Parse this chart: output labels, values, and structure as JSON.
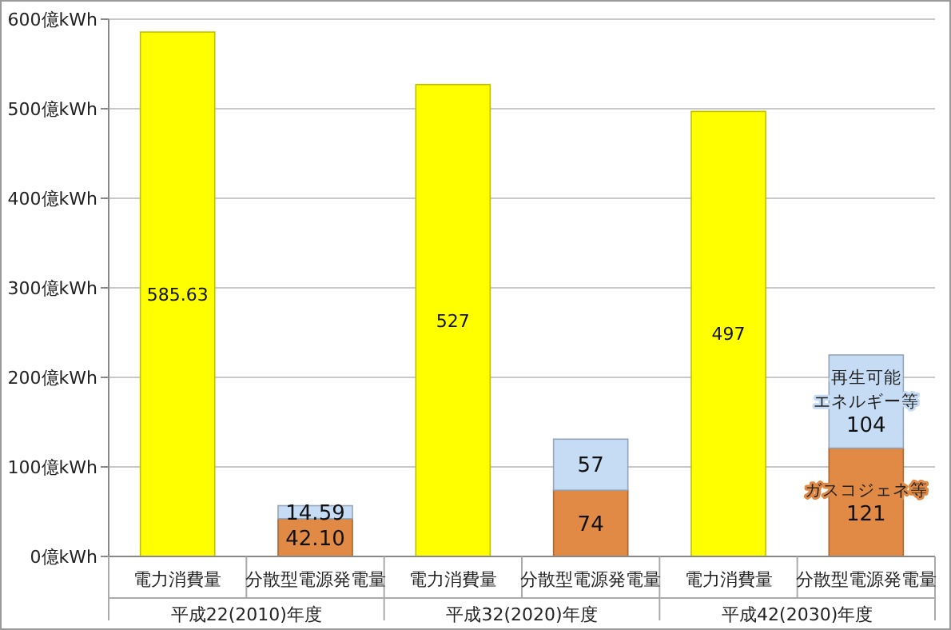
{
  "chart_data": {
    "type": "bar",
    "stacked": true,
    "grid": "y",
    "categories": [
      "電力消費量",
      "分散型電源発電量",
      "電力消費量",
      "分散型電源発電量",
      "電力消費量",
      "分散型電源発電量"
    ],
    "annotations": [
      "平成22(2010)年度",
      "平成32(2020)年度",
      "平成42(2030)年度"
    ],
    "ylim": [
      0,
      600
    ],
    "yticks": [
      {
        "value": 0,
        "label": "0億kWh"
      },
      {
        "value": 100,
        "label": "100億kWh"
      },
      {
        "value": 200,
        "label": "200億kWh"
      },
      {
        "value": 300,
        "label": "300億kWh"
      },
      {
        "value": 400,
        "label": "400億kWh"
      },
      {
        "value": 500,
        "label": "500億kWh"
      },
      {
        "value": 600,
        "label": "600億kWh"
      }
    ],
    "series": [
      {
        "color": "#ffff00",
        "values": [
          585.63,
          null,
          527,
          null,
          497,
          null
        ],
        "value_labels": [
          "585.63",
          null,
          "527",
          null,
          "497",
          null
        ]
      },
      {
        "name": "ガスコジェネ等",
        "color": "#e08a45",
        "values": [
          null,
          42.1,
          null,
          74,
          null,
          121
        ],
        "value_labels": [
          null,
          "42.10",
          null,
          "74",
          null,
          "121"
        ]
      },
      {
        "name": "再生可能エネルギー等",
        "color": "#c6dcf4",
        "values": [
          null,
          14.59,
          null,
          57,
          null,
          104
        ],
        "value_labels": [
          null,
          "14.59",
          null,
          "57",
          null,
          "104"
        ]
      }
    ]
  }
}
